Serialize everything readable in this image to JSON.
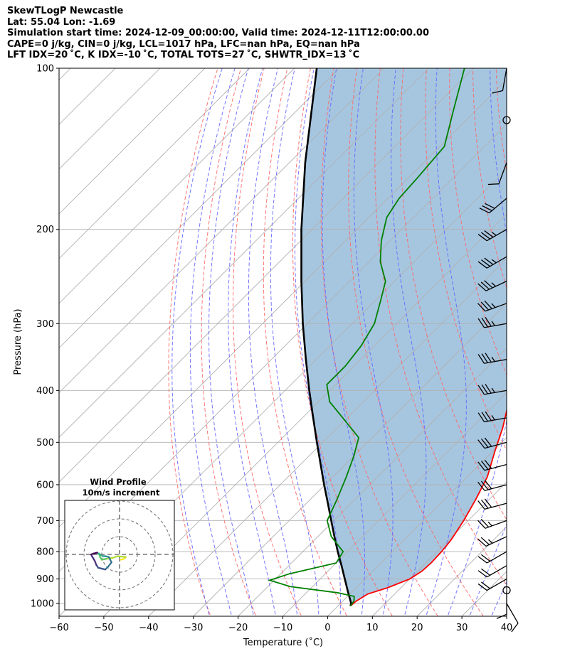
{
  "header": {
    "line1": "SkewTLogP Newcastle",
    "line2": "Lat: 55.04   Lon: -1.69",
    "line3": "Simulation start time: 2024-12-09_00:00:00, Valid time: 2024-12-11T12:00:00.00",
    "line4": "CAPE=0 j/kg, CIN=0 j/kg, LCL=1017 hPa, LFC=nan hPa, EQ=nan hPa",
    "line5": "LFT IDX=20 ˚C, K IDX=-10 ˚C, TOTAL TOTS=27 ˚C, SHWTR_IDX=13 ˚C"
  },
  "colors": {
    "temperature": "#ff0000",
    "dewpoint": "#008000",
    "parcel": "#000000",
    "cape_fill": "#a6c6e0",
    "dry_adiabat": "#ff6666",
    "moist_adiabat": "#6666ff",
    "isotherm": "#b0b0b0",
    "grid": "#b0b0b0"
  },
  "chart_data": {
    "type": "line",
    "title": "",
    "xlabel": "Temperature (˚C)",
    "ylabel": "Pressure (hPa)",
    "xlim": [
      -60,
      40
    ],
    "ylim": [
      1050,
      100
    ],
    "y_scale": "log",
    "skew": true,
    "grid": true,
    "xticks": [
      -60,
      -50,
      -40,
      -30,
      -20,
      -10,
      0,
      10,
      20,
      30,
      40
    ],
    "yticks": [
      100,
      200,
      300,
      400,
      500,
      600,
      700,
      800,
      900,
      1000
    ],
    "series": [
      {
        "key": "temperature",
        "color": "#ff0000",
        "points": [
          [
            1011,
            2.8
          ],
          [
            990,
            3.0
          ],
          [
            960,
            4.0
          ],
          [
            935,
            7.0
          ],
          [
            900,
            10.0
          ],
          [
            870,
            11.0
          ],
          [
            840,
            11.2
          ],
          [
            800,
            11.0
          ],
          [
            760,
            10.5
          ],
          [
            700,
            9.0
          ],
          [
            640,
            7.0
          ],
          [
            580,
            4.5
          ],
          [
            520,
            0.5
          ],
          [
            470,
            -3.0
          ],
          [
            420,
            -7.5
          ],
          [
            370,
            -12.5
          ],
          [
            330,
            -16.5
          ],
          [
            300,
            -19.0
          ],
          [
            270,
            -22.0
          ],
          [
            240,
            -25.5
          ],
          [
            215,
            -28.5
          ],
          [
            200,
            -31.0
          ],
          [
            185,
            -34.0
          ],
          [
            170,
            -37.5
          ],
          [
            150,
            -40.0
          ],
          [
            130,
            -43.0
          ],
          [
            115,
            -44.0
          ],
          [
            100,
            -47.0
          ]
        ]
      },
      {
        "key": "dewpoint",
        "color": "#008000",
        "points": [
          [
            1011,
            2.8
          ],
          [
            990,
            2.5
          ],
          [
            970,
            1.5
          ],
          [
            955,
            -3.0
          ],
          [
            930,
            -15.0
          ],
          [
            905,
            -21.0
          ],
          [
            880,
            -18.0
          ],
          [
            840,
            -10.0
          ],
          [
            800,
            -11.0
          ],
          [
            750,
            -17.0
          ],
          [
            700,
            -21.5
          ],
          [
            640,
            -24.0
          ],
          [
            580,
            -27.0
          ],
          [
            530,
            -30.0
          ],
          [
            490,
            -33.0
          ],
          [
            450,
            -41.0
          ],
          [
            420,
            -47.5
          ],
          [
            390,
            -52.0
          ],
          [
            360,
            -52.0
          ],
          [
            330,
            -53.0
          ],
          [
            300,
            -55.0
          ],
          [
            270,
            -59.0
          ],
          [
            250,
            -62.0
          ],
          [
            230,
            -67.5
          ],
          [
            210,
            -72.0
          ],
          [
            190,
            -76.0
          ],
          [
            175,
            -77.5
          ],
          [
            160,
            -78.0
          ],
          [
            140,
            -79.0
          ],
          [
            120,
            -85.0
          ],
          [
            100,
            -92.0
          ]
        ]
      },
      {
        "key": "parcel",
        "color": "#000000",
        "points": [
          [
            1011,
            2.8
          ],
          [
            1000,
            2.4
          ],
          [
            950,
            -1.0
          ],
          [
            900,
            -4.5
          ],
          [
            850,
            -8.2
          ],
          [
            800,
            -12.2
          ],
          [
            750,
            -16.3
          ],
          [
            700,
            -20.6
          ],
          [
            650,
            -25.2
          ],
          [
            600,
            -30.2
          ],
          [
            550,
            -35.5
          ],
          [
            500,
            -41.3
          ],
          [
            450,
            -47.6
          ],
          [
            400,
            -54.6
          ],
          [
            350,
            -62.3
          ],
          [
            300,
            -71.0
          ],
          [
            250,
            -80.8
          ],
          [
            200,
            -92.4
          ],
          [
            150,
            -106.5
          ],
          [
            100,
            -125.0
          ]
        ]
      }
    ],
    "wind_barbs": {
      "pressures": [
        1000,
        950,
        900,
        850,
        800,
        750,
        700,
        650,
        600,
        550,
        500,
        450,
        400,
        350,
        300,
        275,
        250,
        225,
        200,
        175,
        150,
        125,
        100
      ],
      "speed_kt": [
        10,
        10,
        20,
        20,
        20,
        25,
        25,
        30,
        30,
        30,
        30,
        35,
        35,
        35,
        35,
        35,
        35,
        35,
        35,
        30,
        10,
        0,
        10
      ],
      "direction_deg": [
        150,
        180,
        240,
        240,
        240,
        245,
        250,
        255,
        255,
        255,
        255,
        260,
        260,
        260,
        260,
        250,
        245,
        240,
        240,
        230,
        200,
        0,
        190
      ],
      "calm_markers_hpa": [
        945,
        125
      ]
    },
    "hodograph": {
      "title": "Wind Profile",
      "subtitle": "10m/s increment",
      "rings_ms": [
        10,
        20,
        30
      ],
      "u_ms": [
        0.5,
        2.5,
        3.5,
        -1.0,
        -4.0,
        -7.5,
        -10.0,
        -11.0,
        -11.5,
        -12.0,
        -10.5,
        -9.0,
        -8.0,
        -6.0,
        -4.5,
        -6.5,
        -8.0,
        -10.0,
        -12.0,
        -13.0,
        -14.0,
        -15.5,
        -16.0,
        -14.5,
        -12.5
      ],
      "v_ms": [
        -3.0,
        -2.5,
        -1.5,
        -1.0,
        -2.0,
        -2.5,
        -3.0,
        -1.5,
        0.5,
        0.5,
        -0.5,
        -1.0,
        -1.0,
        -1.5,
        -4.5,
        -7.0,
        -8.5,
        -8.0,
        -7.5,
        -6.0,
        -3.5,
        -1.0,
        0.0,
        0.5,
        1.0
      ]
    }
  }
}
